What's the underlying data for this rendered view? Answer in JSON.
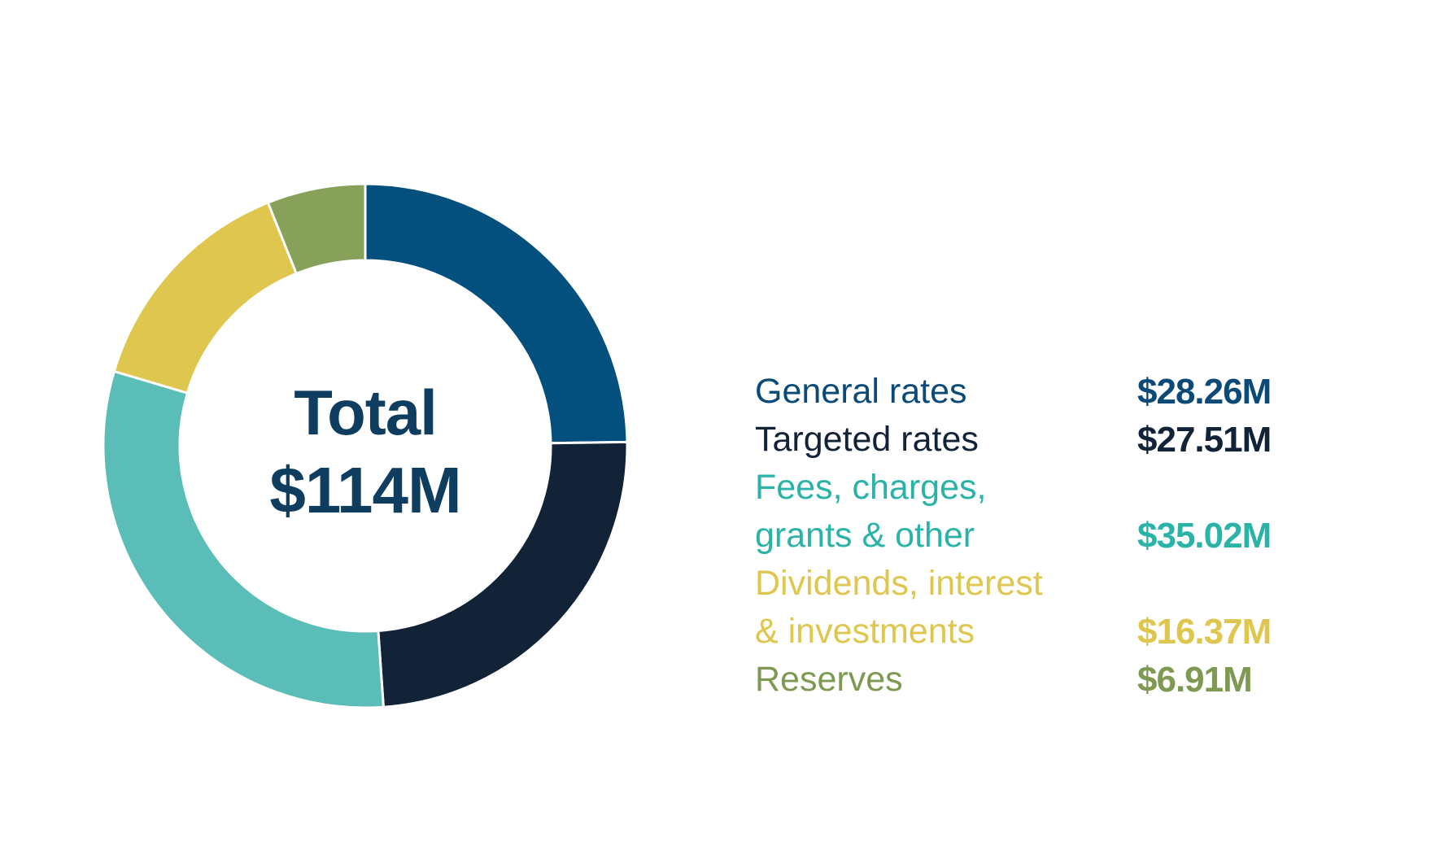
{
  "center": {
    "title": "Total",
    "total": "$114M"
  },
  "chart_data": {
    "type": "pie",
    "variant": "donut",
    "title": "",
    "slices": [
      {
        "label": "General rates",
        "value": 28.26,
        "display": "$28.26M",
        "color": "#034f7e"
      },
      {
        "label": "Targeted rates",
        "value": 27.51,
        "display": "$27.51M",
        "color": "#122237"
      },
      {
        "label": "Fees, charges,\ngrants & other",
        "value": 35.02,
        "display": "$35.02M",
        "color": "#5bbdb8"
      },
      {
        "label": "Dividends, interest\n& investments",
        "value": 16.37,
        "display": "$16.37M",
        "color": "#dec64f"
      },
      {
        "label": "Reserves",
        "value": 6.91,
        "display": "$6.91M",
        "color": "#87a05a"
      }
    ],
    "legend_placement": "right",
    "value_text_colors": [
      "#0b4a78",
      "#122237",
      "#2bb3a8",
      "#dec64f",
      "#7e9a52"
    ]
  }
}
